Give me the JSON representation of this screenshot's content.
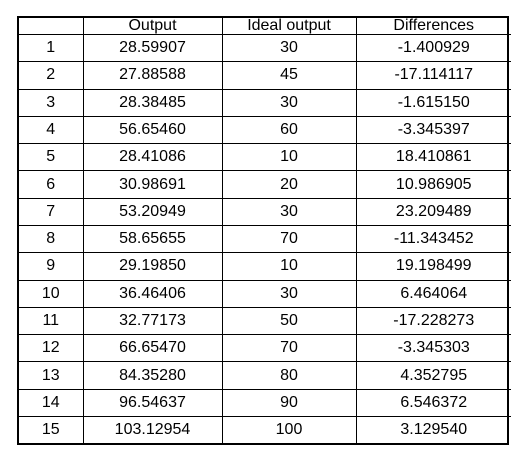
{
  "table": {
    "headers": [
      "",
      "Output",
      "Ideal output",
      "Differences"
    ],
    "rows": [
      [
        "1",
        "28.59907",
        "30",
        "-1.400929"
      ],
      [
        "2",
        "27.88588",
        "45",
        "-17.114117"
      ],
      [
        "3",
        "28.38485",
        "30",
        "-1.615150"
      ],
      [
        "4",
        "56.65460",
        "60",
        "-3.345397"
      ],
      [
        "5",
        "28.41086",
        "10",
        "18.410861"
      ],
      [
        "6",
        "30.98691",
        "20",
        "10.986905"
      ],
      [
        "7",
        "53.20949",
        "30",
        "23.209489"
      ],
      [
        "8",
        "58.65655",
        "70",
        "-11.343452"
      ],
      [
        "9",
        "29.19850",
        "10",
        "19.198499"
      ],
      [
        "10",
        "36.46406",
        "30",
        "6.464064"
      ],
      [
        "11",
        "32.77173",
        "50",
        "-17.228273"
      ],
      [
        "12",
        "66.65470",
        "70",
        "-3.345303"
      ],
      [
        "13",
        "84.35280",
        "80",
        "4.352795"
      ],
      [
        "14",
        "96.54637",
        "90",
        "6.546372"
      ],
      [
        "15",
        "103.12954",
        "100",
        "3.129540"
      ]
    ]
  }
}
